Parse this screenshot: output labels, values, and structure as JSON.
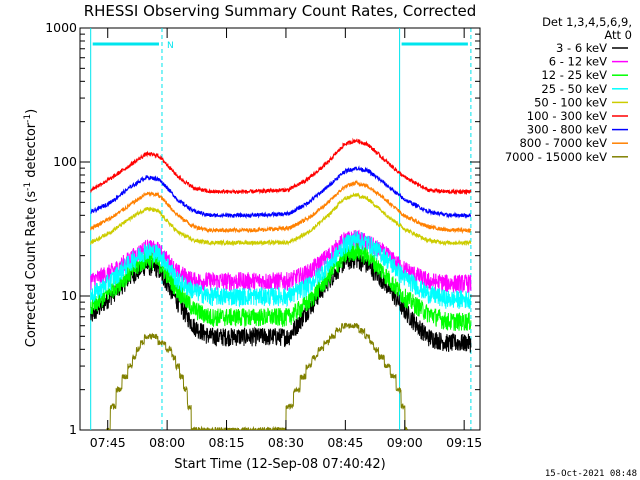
{
  "chart_data": {
    "type": "line",
    "title": "RHESSI Observing Summary Count Rates, Corrected",
    "xlabel": "Start Time (12-Sep-08 07:40:42)",
    "ylabel_parts": [
      "Corrected Count Rate (s",
      "-1",
      " detector",
      "-1",
      ")"
    ],
    "y_scale": "log",
    "ylim": [
      1,
      1000
    ],
    "y_ticks": [
      1,
      10,
      100,
      1000
    ],
    "y_tick_labels": [
      "1",
      "10",
      "100",
      "1000"
    ],
    "x_range_minutes": [
      -2.7,
      98.3
    ],
    "x_ticks": [
      {
        "minute": 4.3,
        "label": "07:45"
      },
      {
        "minute": 19.3,
        "label": "08:00"
      },
      {
        "minute": 34.3,
        "label": "08:15"
      },
      {
        "minute": 49.3,
        "label": "08:30"
      },
      {
        "minute": 64.3,
        "label": "08:45"
      },
      {
        "minute": 79.3,
        "label": "09:00"
      },
      {
        "minute": 94.3,
        "label": "09:15"
      }
    ],
    "legend": {
      "header": [
        "Det 1,3,4,5,6,9,",
        "Att 0"
      ],
      "placement": "right"
    },
    "night_bars": [
      {
        "start": 0.0,
        "end": 18.0,
        "marker": "N"
      },
      {
        "start": 78.0,
        "end": 96.0,
        "marker": ""
      }
    ],
    "saa_lines_solid": [
      0.0,
      78.0
    ],
    "saa_lines_dashed": [
      18.0,
      96.0
    ],
    "series": [
      {
        "name": "3 - 6 keV",
        "color": "#000000",
        "x": [
          0,
          5,
          10,
          14,
          17,
          19,
          22,
          26,
          30,
          40,
          50,
          55,
          60,
          64,
          67,
          70,
          74,
          79,
          85,
          90,
          96
        ],
        "y": [
          7,
          10,
          14,
          17,
          16,
          13,
          9,
          6,
          5,
          5,
          5,
          8,
          13,
          18,
          19,
          17,
          13,
          8,
          5,
          4.5,
          4.5
        ]
      },
      {
        "name": "6 - 12 keV",
        "color": "#ff00ff",
        "x": [
          0,
          5,
          10,
          14,
          17,
          19,
          22,
          26,
          30,
          40,
          50,
          55,
          60,
          64,
          67,
          70,
          74,
          79,
          85,
          90,
          96
        ],
        "y": [
          13,
          15,
          19,
          23,
          22,
          19,
          15,
          13,
          13,
          13,
          13,
          15,
          20,
          26,
          27,
          25,
          21,
          16,
          13,
          12.5,
          12.5
        ]
      },
      {
        "name": "12 - 25 keV",
        "color": "#00ff00",
        "x": [
          0,
          5,
          10,
          14,
          17,
          19,
          22,
          26,
          30,
          40,
          50,
          55,
          60,
          64,
          67,
          70,
          74,
          79,
          85,
          90,
          96
        ],
        "y": [
          8,
          11,
          15,
          19,
          18,
          15,
          11,
          8,
          7,
          7,
          7,
          9,
          14,
          20,
          22,
          20,
          15,
          10,
          7.5,
          6.5,
          6.5
        ]
      },
      {
        "name": "25 - 50 keV",
        "color": "#00ffff",
        "x": [
          0,
          5,
          10,
          14,
          17,
          19,
          22,
          26,
          30,
          40,
          50,
          55,
          60,
          64,
          67,
          70,
          74,
          79,
          85,
          90,
          96
        ],
        "y": [
          10,
          13,
          18,
          22,
          21,
          18,
          13,
          11,
          10,
          10,
          10,
          12,
          17,
          24,
          27,
          25,
          20,
          14,
          10.5,
          9.5,
          9.5
        ]
      },
      {
        "name": "50 - 100 keV",
        "color": "#cccc00",
        "x": [
          0,
          5,
          10,
          14,
          17,
          19,
          22,
          26,
          30,
          40,
          50,
          55,
          60,
          64,
          67,
          70,
          74,
          79,
          85,
          90,
          96
        ],
        "y": [
          25,
          30,
          38,
          45,
          43,
          37,
          30,
          26,
          25,
          25,
          25,
          30,
          40,
          53,
          57,
          53,
          42,
          32,
          26,
          25,
          25
        ]
      },
      {
        "name": "100 - 300 keV",
        "color": "#ff0000",
        "x": [
          0,
          5,
          10,
          14,
          17,
          19,
          22,
          26,
          30,
          40,
          50,
          55,
          60,
          64,
          67,
          70,
          74,
          79,
          85,
          90,
          96
        ],
        "y": [
          62,
          75,
          95,
          115,
          112,
          98,
          78,
          64,
          60,
          60,
          62,
          75,
          100,
          135,
          145,
          135,
          105,
          78,
          62,
          60,
          60
        ]
      },
      {
        "name": "300 - 800 keV",
        "color": "#0000ff",
        "x": [
          0,
          5,
          10,
          14,
          17,
          19,
          22,
          26,
          30,
          40,
          50,
          55,
          60,
          64,
          67,
          70,
          74,
          79,
          85,
          90,
          96
        ],
        "y": [
          42,
          50,
          65,
          77,
          75,
          66,
          52,
          43,
          40,
          40,
          41,
          50,
          66,
          85,
          90,
          86,
          70,
          53,
          43,
          40,
          40
        ]
      },
      {
        "name": "800 - 7000 keV",
        "color": "#ff8000",
        "x": [
          0,
          5,
          10,
          14,
          17,
          19,
          22,
          26,
          30,
          40,
          50,
          55,
          60,
          64,
          67,
          70,
          74,
          79,
          85,
          90,
          96
        ],
        "y": [
          32,
          38,
          48,
          58,
          57,
          50,
          40,
          33,
          31,
          31,
          32,
          38,
          50,
          65,
          70,
          66,
          54,
          40,
          33,
          31,
          31
        ]
      },
      {
        "name": "7000 - 15000 keV",
        "color": "#808000",
        "x": [
          4,
          7,
          10,
          12,
          14,
          16,
          18,
          20,
          22,
          24,
          26,
          48,
          52,
          55,
          58,
          61,
          64,
          67,
          70,
          72,
          75,
          78,
          80
        ],
        "y": [
          1,
          2,
          3,
          4,
          5,
          5,
          4.5,
          4,
          3,
          2,
          1,
          1,
          2,
          3,
          4,
          5,
          6,
          6,
          5,
          4,
          3,
          2,
          1
        ]
      }
    ]
  },
  "footer_stamp": "15-Oct-2021 08:48"
}
